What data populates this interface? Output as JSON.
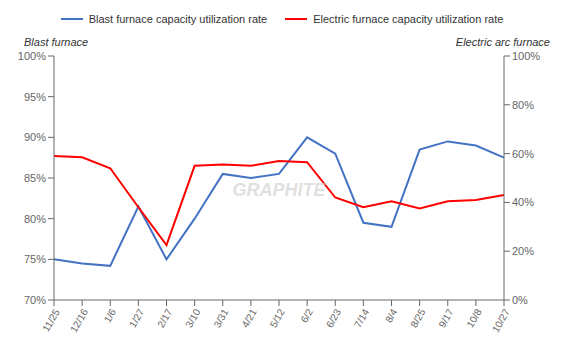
{
  "chart_data": {
    "type": "line",
    "categories": [
      "11/25",
      "12/16",
      "1/6",
      "1/27",
      "2/17",
      "3/10",
      "3/31",
      "4/21",
      "5/12",
      "6/2",
      "6/23",
      "7/14",
      "8/4",
      "8/25",
      "9/17",
      "10/8",
      "10/27"
    ],
    "series": [
      {
        "name": "Blast furnace capacity utilization rate",
        "color": "#4472C4",
        "values": [
          75.0,
          74.5,
          74.2,
          81.5,
          75.0,
          80.0,
          85.5,
          85.0,
          85.5,
          90.0,
          88.0,
          79.5,
          79.0,
          88.5,
          89.5,
          89.0,
          87.5
        ]
      },
      {
        "name": "Electric furnace capacity utilization rate",
        "color": "#FF0000",
        "axis": "y2",
        "values": [
          59.0,
          58.5,
          54.0,
          38.0,
          22.5,
          55.0,
          55.5,
          55.0,
          57.0,
          56.5,
          42.0,
          38.0,
          40.5,
          37.5,
          40.5,
          41.0,
          43.0
        ]
      }
    ],
    "y_label": "Blast furnace",
    "y2_label": "Electric arc furnace",
    "ylim": [
      70,
      100
    ],
    "yticks": [
      {
        "value": 70,
        "label": "70%"
      },
      {
        "value": 75,
        "label": "75%"
      },
      {
        "value": 80,
        "label": "80%"
      },
      {
        "value": 85,
        "label": "85%"
      },
      {
        "value": 90,
        "label": "90%"
      },
      {
        "value": 95,
        "label": "95%"
      },
      {
        "value": 100,
        "label": "100%"
      }
    ],
    "y2lim": [
      0,
      100
    ],
    "y2ticks": [
      {
        "value": 0,
        "label": "0%"
      },
      {
        "value": 20,
        "label": "20%"
      },
      {
        "value": 40,
        "label": "40%"
      },
      {
        "value": 60,
        "label": "60%"
      },
      {
        "value": 80,
        "label": "80%"
      },
      {
        "value": 100,
        "label": "100%"
      }
    ],
    "grid": false,
    "legend": "top",
    "annotations": [
      "GRAPHITE"
    ]
  }
}
